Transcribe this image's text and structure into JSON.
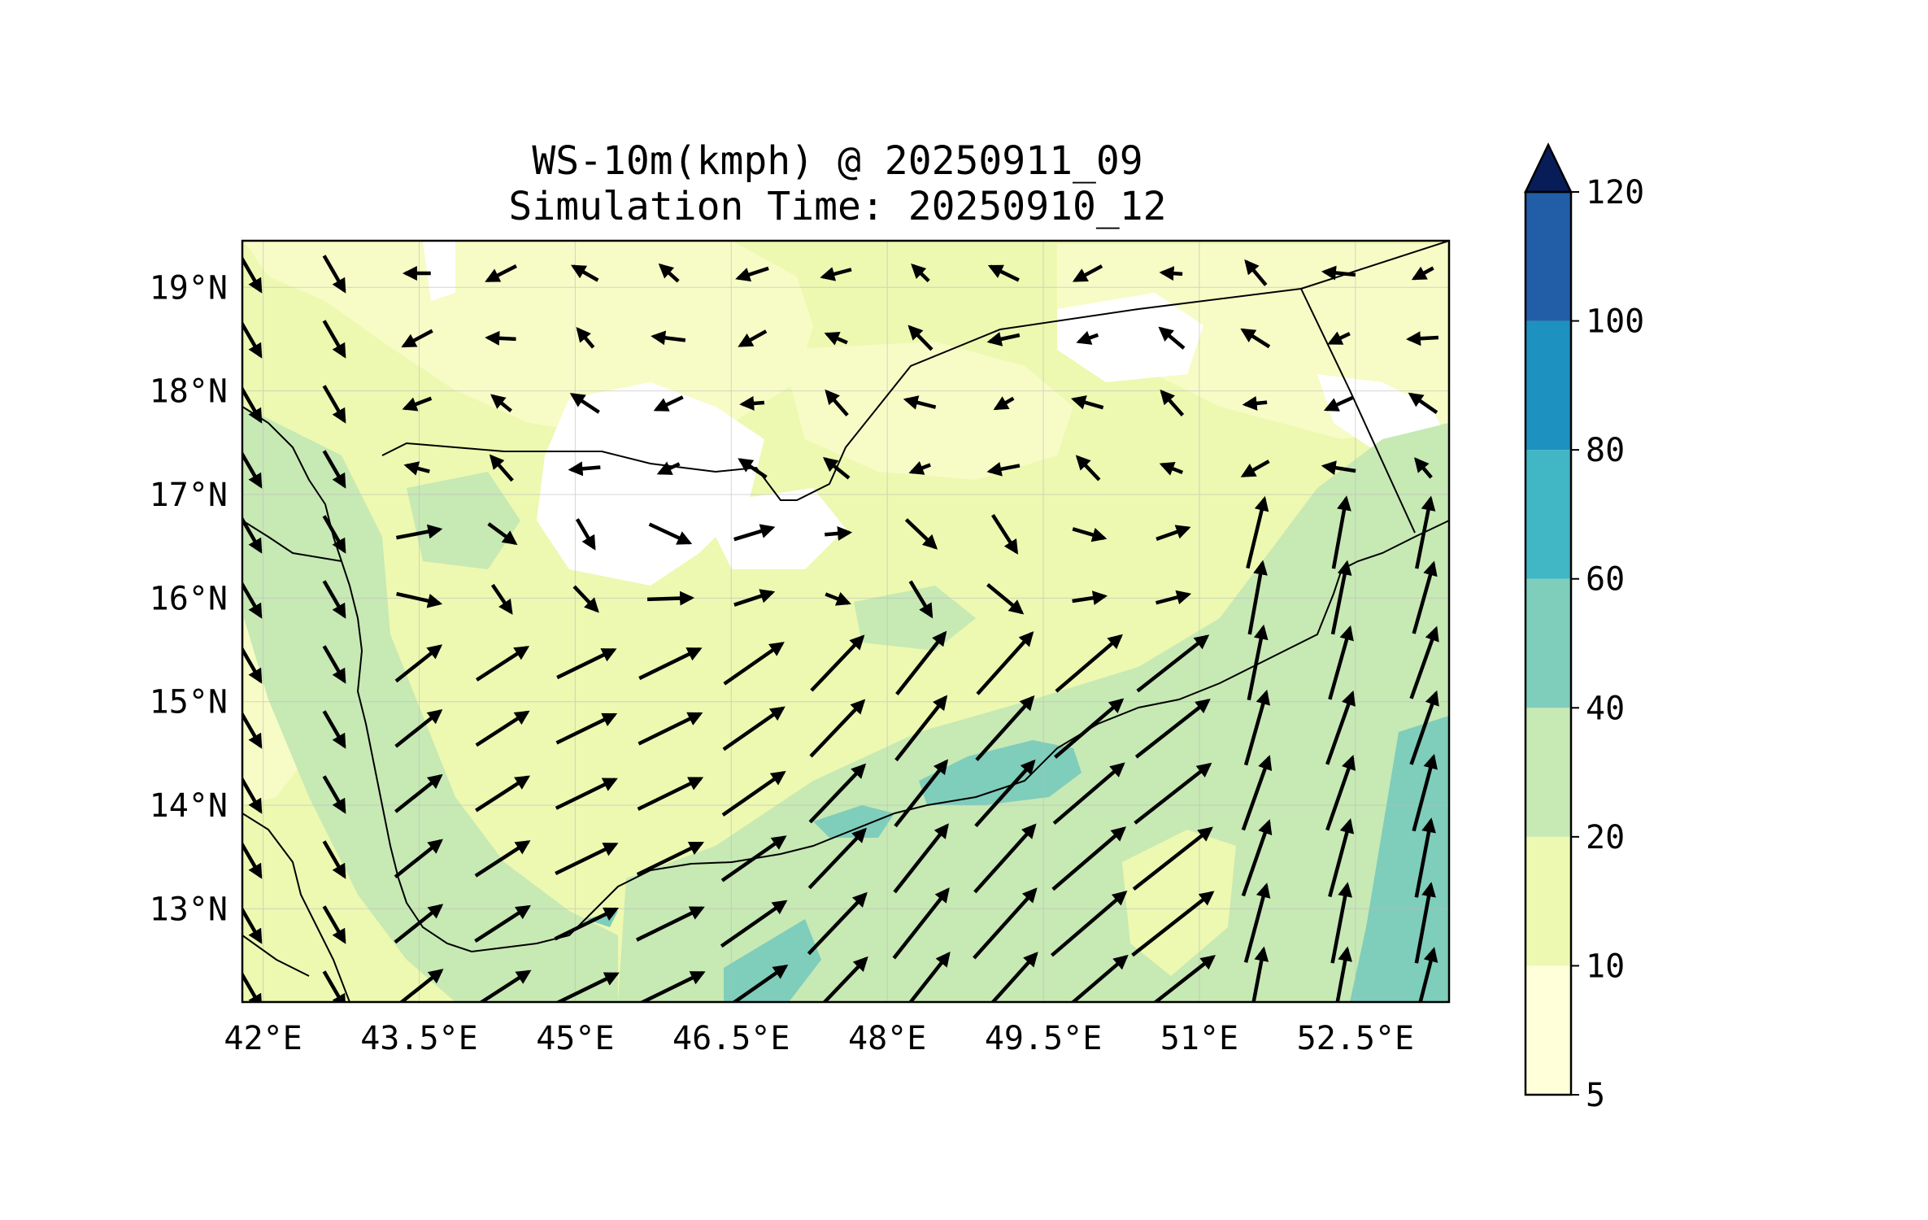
{
  "title": {
    "line1": "WS-10m(kmph) @ 20250911_09",
    "line2": "Simulation Time: 20250910_12"
  },
  "map": {
    "projection": "PlateCarree",
    "lon_range": [
      41.8,
      53.4
    ],
    "lat_range": [
      12.1,
      19.45
    ],
    "x_ticks": [
      "42°E",
      "43.5°E",
      "45°E",
      "46.5°E",
      "48°E",
      "49.5°E",
      "51°E",
      "52.5°E"
    ],
    "x_tick_values": [
      42,
      43.5,
      45,
      46.5,
      48,
      49.5,
      51,
      52.5
    ],
    "y_ticks": [
      "19°N",
      "18°N",
      "17°N",
      "16°N",
      "15°N",
      "14°N",
      "13°N"
    ],
    "y_tick_values": [
      19,
      18,
      17,
      16,
      15,
      14,
      13
    ],
    "gridlines": true
  },
  "colorbar": {
    "levels": [
      "5",
      "10",
      "20",
      "40",
      "60",
      "80",
      "100",
      "120"
    ],
    "colors": [
      "#ffffd9",
      "#edf8b1",
      "#c7e9b4",
      "#7fcdbb",
      "#41b6c4",
      "#1d91c0",
      "#225ea8",
      "#0c2c84"
    ],
    "extend_color": "#081d58",
    "extend": "max"
  },
  "wind_field": {
    "description_grid_step_deg": 0.8,
    "prevailing_south": "southwest to west-southwest",
    "prevailing_north": "westerly to northwesterly"
  }
}
